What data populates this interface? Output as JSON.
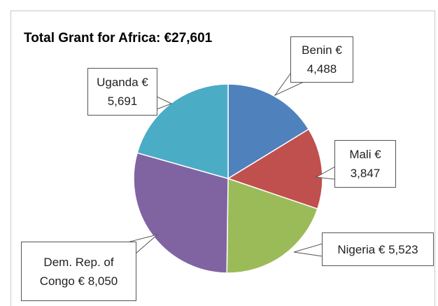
{
  "chart_data": {
    "type": "pie",
    "title": "Total Grant for Africa: €27,601",
    "categories": [
      "Benin",
      "Mali",
      "Nigeria",
      "Dem. Rep. of Congo",
      "Uganda"
    ],
    "values": [
      4488,
      3847,
      5523,
      8050,
      5691
    ],
    "value_labels": [
      "€ 4,488",
      "€ 3,847",
      "€ 5,523",
      "€ 8,050",
      "€ 5,691"
    ],
    "colors": [
      "#4f81bd",
      "#c0504d",
      "#9bbb59",
      "#8064a2",
      "#4bacc6"
    ]
  }
}
